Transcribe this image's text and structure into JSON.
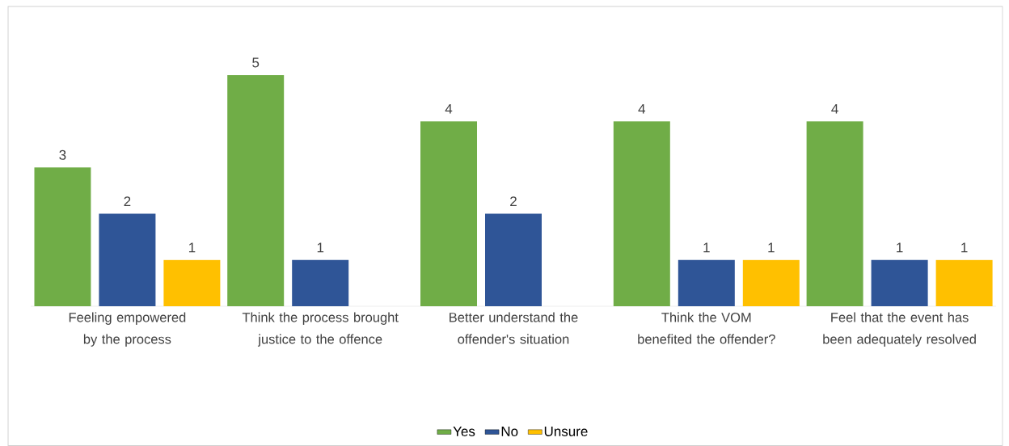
{
  "chart_data": {
    "type": "bar",
    "data_labels": true,
    "legend": "bottom",
    "categories": [
      "Feeling empowered by the process",
      "Think the process brought justice to the offence",
      "Better understand the offender's situation",
      "Think the VOM benefited the offender?",
      "Feel that the event has been adequately resolved"
    ],
    "series": [
      {
        "name": "Yes",
        "color": "#70ad47",
        "values": [
          3,
          5,
          4,
          4,
          4
        ]
      },
      {
        "name": "No",
        "color": "#2f5597",
        "values": [
          2,
          1,
          2,
          1,
          1
        ]
      },
      {
        "name": "Unsure",
        "color": "#ffc000",
        "values": [
          1,
          null,
          null,
          1,
          1
        ]
      }
    ]
  }
}
